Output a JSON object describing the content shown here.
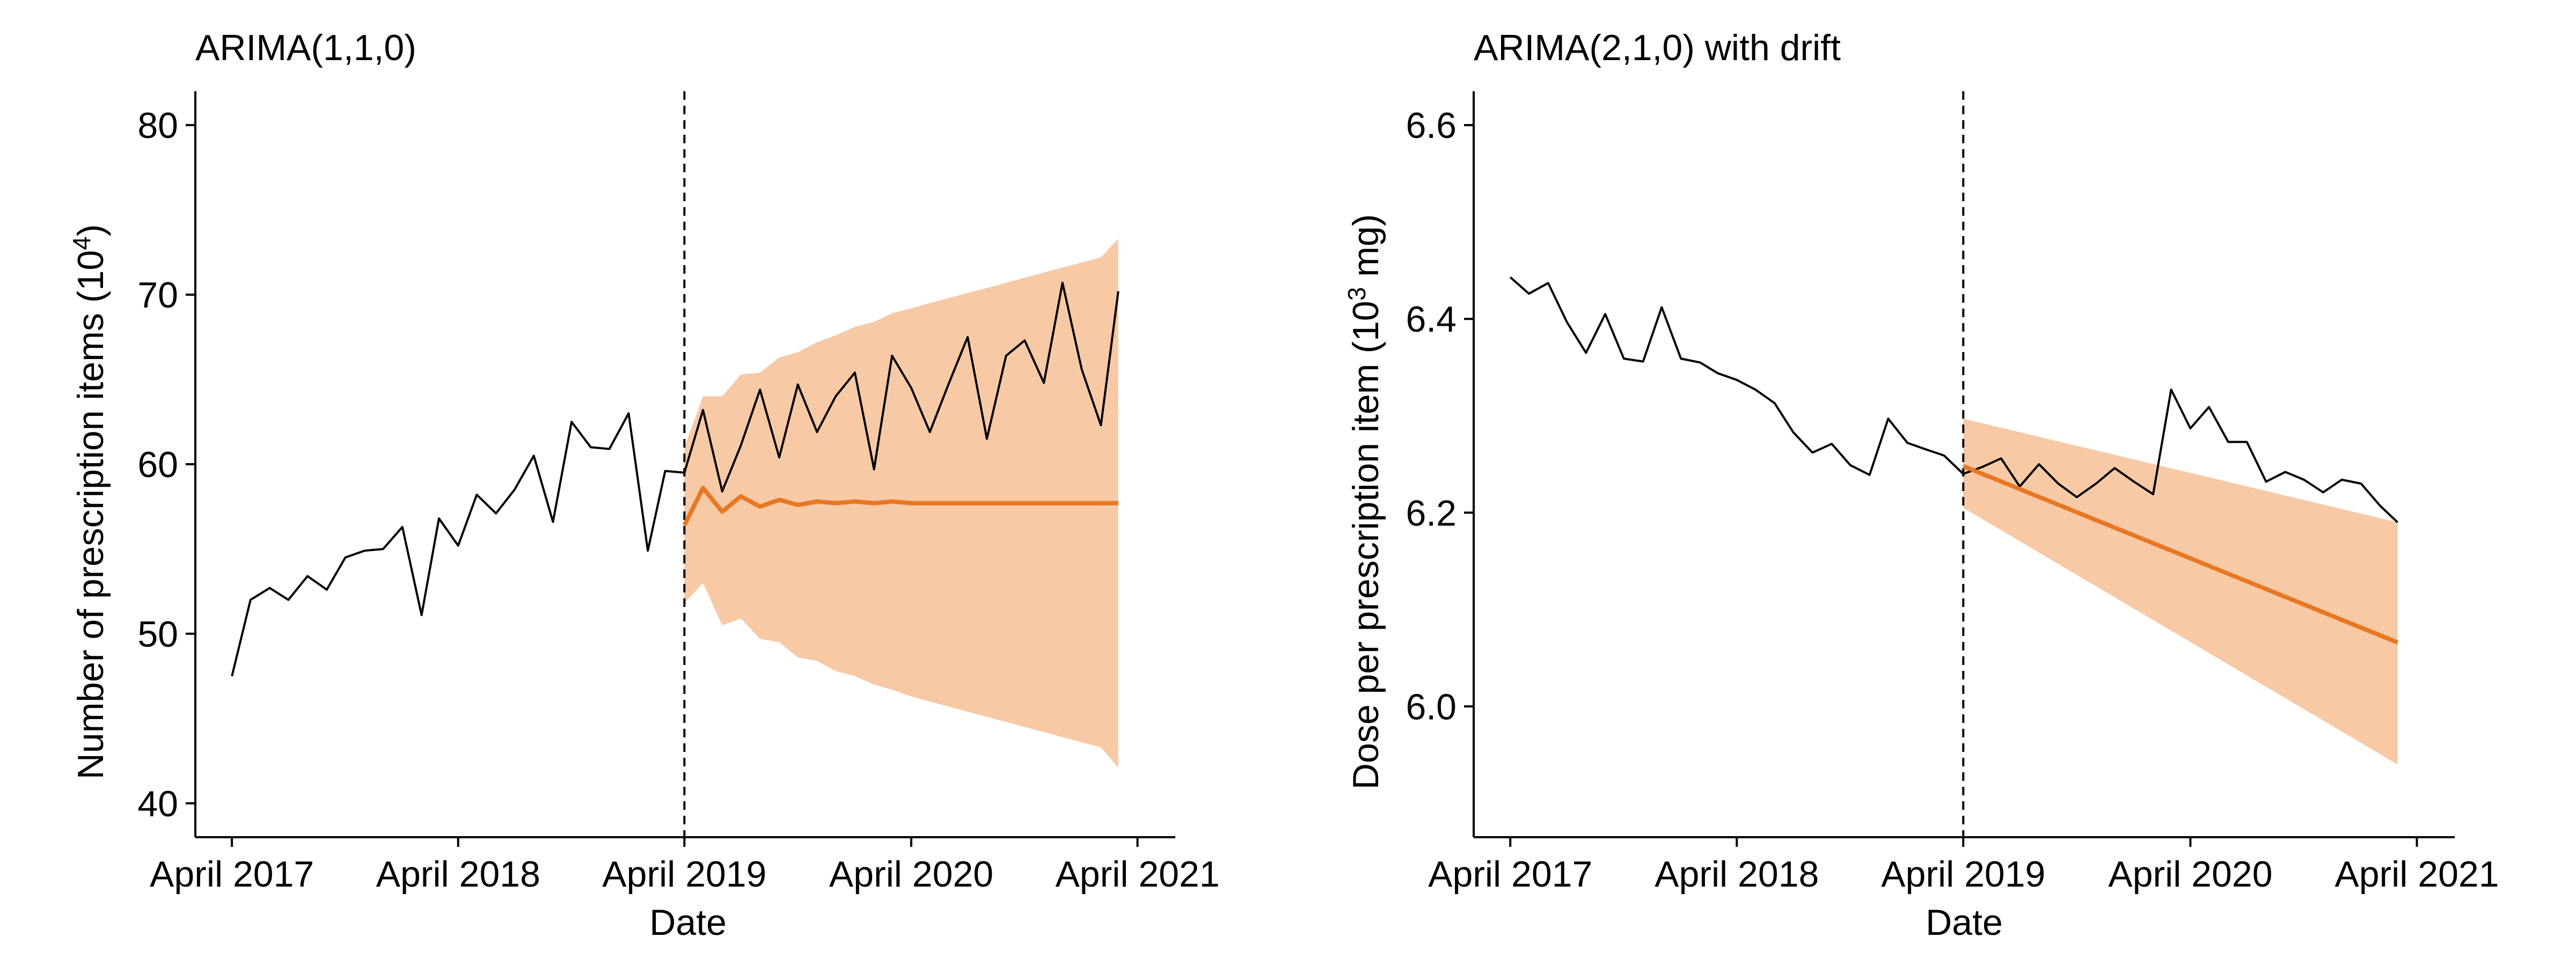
{
  "chart_data": [
    {
      "type": "line",
      "title": "ARIMA(1,1,0)",
      "xlabel": "Date",
      "ylabel": {
        "main": "Number of prescription items (10",
        "sup": "4",
        "tail": ")"
      },
      "ylim": [
        38,
        82
      ],
      "yticks": [
        40,
        50,
        60,
        70,
        80
      ],
      "ytick_labels": [
        "40",
        "50",
        "60",
        "70",
        "80"
      ],
      "xticks": [
        "2017-04",
        "2018-04",
        "2019-04",
        "2020-04",
        "2021-04"
      ],
      "xtick_labels": [
        "April 2017",
        "April 2018",
        "April 2019",
        "April 2020",
        "April 2021"
      ],
      "xlim": [
        "2017-02-01",
        "2021-06-01"
      ],
      "intervention_date": "2019-04",
      "series": [
        {
          "role": "observed",
          "color": "#000000",
          "x": [
            "2017-04",
            "2017-05",
            "2017-06",
            "2017-07",
            "2017-08",
            "2017-09",
            "2017-10",
            "2017-11",
            "2017-12",
            "2018-01",
            "2018-02",
            "2018-03",
            "2018-04",
            "2018-05",
            "2018-06",
            "2018-07",
            "2018-08",
            "2018-09",
            "2018-10",
            "2018-11",
            "2018-12",
            "2019-01",
            "2019-02",
            "2019-03",
            "2019-04",
            "2019-05",
            "2019-06",
            "2019-07",
            "2019-08",
            "2019-09",
            "2019-10",
            "2019-11",
            "2019-12",
            "2020-01",
            "2020-02",
            "2020-03",
            "2020-04",
            "2020-05",
            "2020-06",
            "2020-07",
            "2020-08",
            "2020-09",
            "2020-10",
            "2020-11",
            "2020-12",
            "2021-01",
            "2021-02",
            "2021-03"
          ],
          "values": [
            47.5,
            52.0,
            52.7,
            52.0,
            53.4,
            52.6,
            54.5,
            54.9,
            55.0,
            56.3,
            51.1,
            56.8,
            55.2,
            58.2,
            57.1,
            58.5,
            60.5,
            56.6,
            62.5,
            61.0,
            60.9,
            63.0,
            54.9,
            59.6,
            59.5,
            63.2,
            58.4,
            61.1,
            64.4,
            60.4,
            64.7,
            61.9,
            64.0,
            65.4,
            59.7,
            66.4,
            64.5,
            61.9,
            64.8,
            67.5,
            61.5,
            66.4,
            67.3,
            64.8,
            70.7,
            65.6,
            62.3,
            70.2
          ]
        },
        {
          "role": "forecast",
          "color": "#E87722",
          "x": [
            "2019-04",
            "2019-05",
            "2019-06",
            "2019-07",
            "2019-08",
            "2019-09",
            "2019-10",
            "2019-11",
            "2019-12",
            "2020-01",
            "2020-02",
            "2020-03",
            "2020-04",
            "2020-05",
            "2020-06",
            "2020-07",
            "2020-08",
            "2020-09",
            "2020-10",
            "2020-11",
            "2020-12",
            "2021-01",
            "2021-02",
            "2021-03"
          ],
          "values": [
            56.4,
            58.6,
            57.2,
            58.1,
            57.5,
            57.9,
            57.6,
            57.8,
            57.7,
            57.8,
            57.7,
            57.8,
            57.7,
            57.7,
            57.7,
            57.7,
            57.7,
            57.7,
            57.7,
            57.7,
            57.7,
            57.7,
            57.7,
            57.7
          ],
          "lower": [
            51.8,
            53.0,
            50.5,
            50.9,
            49.7,
            49.5,
            48.6,
            48.4,
            47.8,
            47.5,
            47.0,
            46.7,
            46.3,
            46.0,
            45.7,
            45.4,
            45.1,
            44.8,
            44.5,
            44.2,
            43.9,
            43.6,
            43.3,
            42.1
          ],
          "upper": [
            61.0,
            64.0,
            64.0,
            65.3,
            65.4,
            66.3,
            66.6,
            67.2,
            67.6,
            68.1,
            68.4,
            68.9,
            69.2,
            69.5,
            69.8,
            70.1,
            70.4,
            70.7,
            71.0,
            71.3,
            71.6,
            71.9,
            72.2,
            73.3
          ],
          "band_color": "#F7C9A5"
        }
      ]
    },
    {
      "type": "line",
      "title": "ARIMA(2,1,0) with drift",
      "xlabel": "Date",
      "ylabel": {
        "main": "Dose per prescription item (10",
        "sup": "3",
        "tail": " mg)"
      },
      "ylim": [
        5.865,
        6.635
      ],
      "yticks": [
        6.0,
        6.2,
        6.4,
        6.6
      ],
      "ytick_labels": [
        "6.0",
        "6.2",
        "6.4",
        "6.6"
      ],
      "xticks": [
        "2017-04",
        "2018-04",
        "2019-04",
        "2020-04",
        "2021-04"
      ],
      "xtick_labels": [
        "April 2017",
        "April 2018",
        "April 2019",
        "April 2020",
        "April 2021"
      ],
      "xlim": [
        "2017-02-01",
        "2021-06-01"
      ],
      "intervention_date": "2019-04",
      "series": [
        {
          "role": "observed",
          "color": "#000000",
          "x": [
            "2017-04",
            "2017-05",
            "2017-06",
            "2017-07",
            "2017-08",
            "2017-09",
            "2017-10",
            "2017-11",
            "2017-12",
            "2018-01",
            "2018-02",
            "2018-03",
            "2018-04",
            "2018-05",
            "2018-06",
            "2018-07",
            "2018-08",
            "2018-09",
            "2018-10",
            "2018-11",
            "2018-12",
            "2019-01",
            "2019-02",
            "2019-03",
            "2019-04",
            "2019-05",
            "2019-06",
            "2019-07",
            "2019-08",
            "2019-09",
            "2019-10",
            "2019-11",
            "2019-12",
            "2020-01",
            "2020-02",
            "2020-03",
            "2020-04",
            "2020-05",
            "2020-06",
            "2020-07",
            "2020-08",
            "2020-09",
            "2020-10",
            "2020-11",
            "2020-12",
            "2021-01",
            "2021-02",
            "2021-03"
          ],
          "values": [
            6.443,
            6.426,
            6.437,
            6.397,
            6.365,
            6.405,
            6.359,
            6.356,
            6.412,
            6.359,
            6.355,
            6.344,
            6.337,
            6.327,
            6.313,
            6.283,
            6.262,
            6.271,
            6.249,
            6.239,
            6.297,
            6.272,
            6.265,
            6.259,
            6.24,
            6.247,
            6.256,
            6.227,
            6.25,
            6.23,
            6.216,
            6.23,
            6.246,
            6.232,
            6.219,
            6.327,
            6.287,
            6.309,
            6.273,
            6.273,
            6.232,
            6.242,
            6.234,
            6.221,
            6.234,
            6.23,
            6.207,
            6.19
          ]
        },
        {
          "role": "forecast",
          "color": "#E87722",
          "x": [
            "2019-04",
            "2021-03"
          ],
          "values": [
            6.248,
            6.066
          ],
          "lower": [
            6.205,
            5.94
          ],
          "upper": [
            6.297,
            6.19
          ],
          "band_color": "#F7C9A5"
        }
      ]
    }
  ]
}
